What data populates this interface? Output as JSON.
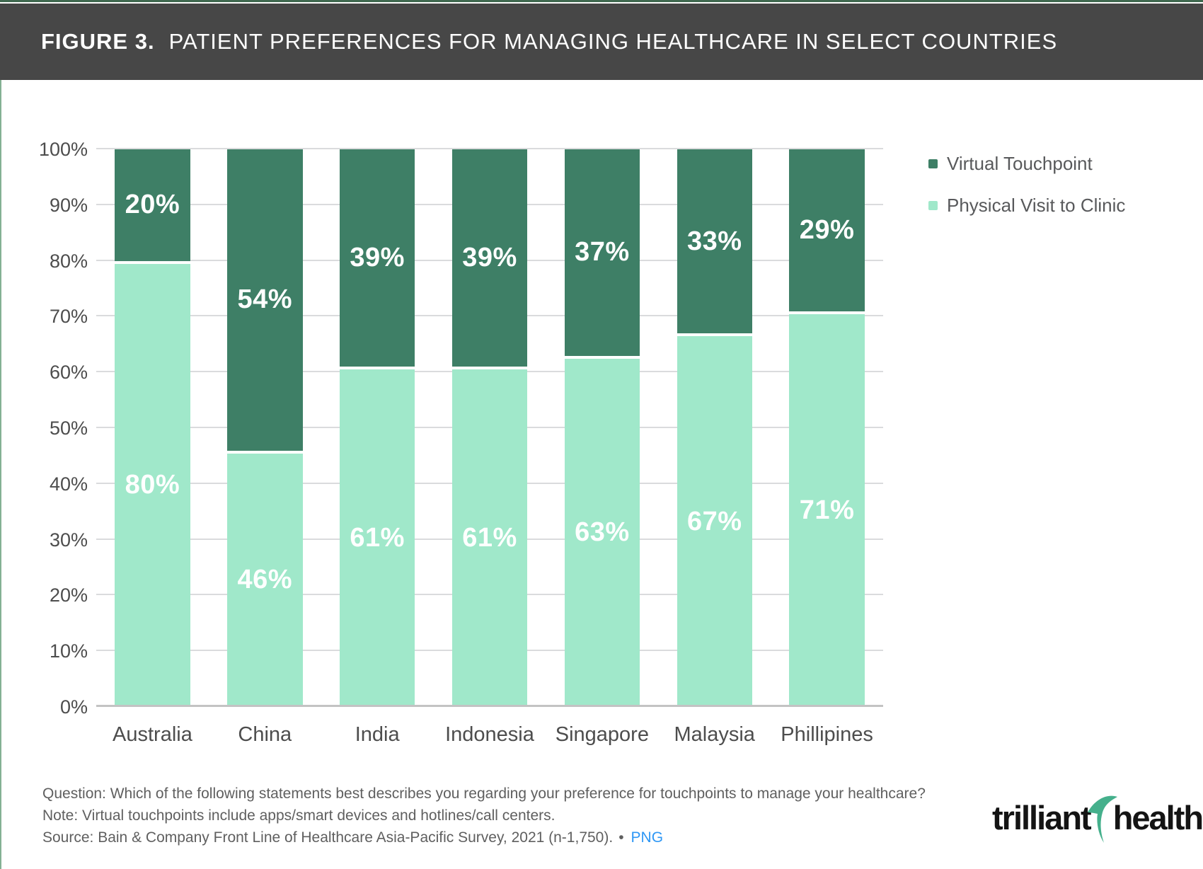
{
  "header": {
    "figure_label": "FIGURE 3.",
    "title": "PATIENT PREFERENCES FOR MANAGING HEALTHCARE IN SELECT COUNTRIES"
  },
  "chart_data": {
    "type": "bar",
    "stacked": true,
    "categories": [
      "Australia",
      "China",
      "India",
      "Indonesia",
      "Singapore",
      "Malaysia",
      "Phillipines"
    ],
    "series": [
      {
        "name": "Virtual Touchpoint",
        "color": "#3E7F66",
        "values": [
          20,
          54,
          39,
          39,
          37,
          33,
          29
        ]
      },
      {
        "name": "Physical Visit to Clinic",
        "color": "#A0E8CA",
        "values": [
          80,
          46,
          61,
          61,
          63,
          67,
          71
        ]
      }
    ],
    "ylim": [
      0,
      100
    ],
    "yticks": [
      0,
      10,
      20,
      30,
      40,
      50,
      60,
      70,
      80,
      90,
      100
    ],
    "ytick_suffix": "%",
    "value_label_suffix": "%",
    "grid": true,
    "legend_position": "right"
  },
  "footer": {
    "question": "Question: Which of the following statements best describes you regarding your preference for touchpoints to manage your healthcare?",
    "note": "Note: Virtual touchpoints include apps/smart devices and hotlines/call centers.",
    "source": "Source: Bain & Company Front Line of Healthcare Asia-Pacific Survey, 2021 (n-1,750).",
    "bullet": "•",
    "download_link": "PNG"
  },
  "logo": {
    "word1": "trilliant",
    "word2": "health"
  },
  "colors": {
    "header_bg": "#474747",
    "top_accent": "#3f684f",
    "left_accent": "#84b194",
    "link_blue": "#2e97f5",
    "logo_swoosh": "#45b08c"
  }
}
